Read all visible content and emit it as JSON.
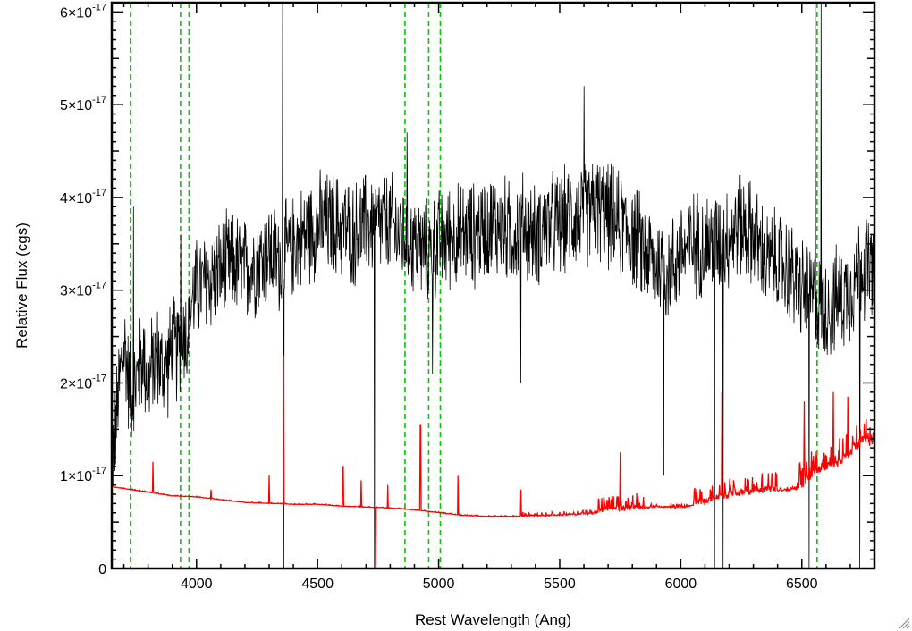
{
  "chart_data": {
    "type": "line",
    "title": "",
    "xlabel": "Rest Wavelength (Ang)",
    "ylabel": "Relative Flux (cgs)",
    "xlim": [
      3650,
      6800
    ],
    "ylim": [
      0,
      6.1e-17
    ],
    "x_ticks": [
      4000,
      4500,
      5000,
      5500,
      6000,
      6500
    ],
    "x_tick_labels": [
      "4000",
      "4500",
      "5000",
      "5500",
      "6000",
      "6500"
    ],
    "y_ticks": [
      0,
      1e-17,
      2e-17,
      3e-17,
      4e-17,
      5e-17,
      6e-17
    ],
    "y_tick_labels": [
      {
        "mantissa": "0",
        "exponent": ""
      },
      {
        "mantissa": "1×10",
        "exponent": "-17"
      },
      {
        "mantissa": "2×10",
        "exponent": "-17"
      },
      {
        "mantissa": "3×10",
        "exponent": "-17"
      },
      {
        "mantissa": "4×10",
        "exponent": "-17"
      },
      {
        "mantissa": "5×10",
        "exponent": "-17"
      },
      {
        "mantissa": "6×10",
        "exponent": "-17"
      }
    ],
    "grid": false,
    "legend": "none",
    "series": [
      {
        "color": "#000000",
        "style": "solid",
        "x": [
          3660,
          3675,
          3690,
          3705,
          3720,
          3740,
          3760,
          3780,
          3800,
          3820,
          3840,
          3860,
          3880,
          3900,
          3920,
          3940,
          3960,
          3980,
          4000,
          4050,
          4100,
          4150,
          4200,
          4250,
          4300,
          4350,
          4400,
          4450,
          4500,
          4550,
          4600,
          4650,
          4700,
          4750,
          4800,
          4850,
          4900,
          4950,
          5000,
          5050,
          5100,
          5150,
          5200,
          5250,
          5300,
          5350,
          5400,
          5450,
          5500,
          5550,
          5600,
          5650,
          5700,
          5750,
          5800,
          5850,
          5900,
          5950,
          6000,
          6050,
          6100,
          6150,
          6200,
          6250,
          6300,
          6350,
          6400,
          6450,
          6500,
          6550,
          6600,
          6650,
          6700,
          6750,
          6790
        ],
        "y": [
          1.3e-17,
          1.8e-17,
          2.2e-17,
          2.4e-17,
          2e-17,
          1.9e-17,
          2.1e-17,
          2.3e-17,
          2e-17,
          2.2e-17,
          2.3e-17,
          2.1e-17,
          2.2e-17,
          2.4e-17,
          2.3e-17,
          2.6e-17,
          2.5e-17,
          2.9e-17,
          3e-17,
          3.1e-17,
          3.2e-17,
          3.3e-17,
          3.2e-17,
          3.3e-17,
          3.4e-17,
          3.3e-17,
          3.5e-17,
          3.6e-17,
          3.7e-17,
          3.7e-17,
          3.7e-17,
          3.6e-17,
          3.7e-17,
          3.7e-17,
          3.7e-17,
          3.6e-17,
          3.5e-17,
          3.4e-17,
          3.5e-17,
          3.6e-17,
          3.6e-17,
          3.6e-17,
          3.7e-17,
          3.7e-17,
          3.6e-17,
          3.7e-17,
          3.6e-17,
          3.7e-17,
          3.7e-17,
          3.8e-17,
          3.8e-17,
          3.9e-17,
          3.8e-17,
          3.7e-17,
          3.6e-17,
          3.4e-17,
          3.3e-17,
          3.2e-17,
          3.4e-17,
          3.5e-17,
          3.5e-17,
          3.5e-17,
          3.6e-17,
          3.7e-17,
          3.6e-17,
          3.3e-17,
          3.3e-17,
          3.2e-17,
          3e-17,
          2.9e-17,
          2.8e-17,
          2.9e-17,
          3e-17,
          3.3e-17,
          3.2e-17
        ],
        "noise_amplitude": 5.5e-18
      },
      {
        "color": "#ff0000",
        "style": "solid",
        "x": [
          3650,
          3700,
          3800,
          3900,
          4000,
          4100,
          4200,
          4300,
          4400,
          4500,
          4600,
          4700,
          4800,
          4900,
          5000,
          5100,
          5200,
          5300,
          5400,
          5500,
          5600,
          5700,
          5800,
          5900,
          6000,
          6100,
          6200,
          6300,
          6400,
          6450,
          6500,
          6550,
          6600,
          6650,
          6700,
          6750,
          6790
        ],
        "y": [
          8.8e-18,
          8.6e-18,
          8.2e-18,
          7.8e-18,
          7.7e-18,
          7.4e-18,
          7.1e-18,
          7e-18,
          6.9e-18,
          6.9e-18,
          6.7e-18,
          6.6e-18,
          6.5e-18,
          6.3e-18,
          6e-18,
          5.7e-18,
          5.6e-18,
          5.6e-18,
          5.6e-18,
          5.7e-18,
          5.8e-18,
          6e-18,
          6.3e-18,
          6.6e-18,
          6.5e-18,
          7e-18,
          7.6e-18,
          8e-18,
          8.3e-18,
          8.4e-18,
          8.6e-18,
          1e-17,
          1.05e-17,
          1.1e-17,
          1.2e-17,
          1.35e-17,
          1.3e-17
        ]
      }
    ],
    "spikes_black": [
      {
        "x": 3740,
        "y": 3.9e-17
      },
      {
        "x": 3935,
        "y": 3.6e-17
      },
      {
        "x": 4355,
        "y": 6.1e-17
      },
      {
        "x": 4360,
        "y": 0
      },
      {
        "x": 4735,
        "y": 0
      },
      {
        "x": 4870,
        "y": 4.7e-17
      },
      {
        "x": 4975,
        "y": 2.1e-17
      },
      {
        "x": 5340,
        "y": 2e-17
      },
      {
        "x": 5600,
        "y": 5.2e-17
      },
      {
        "x": 5930,
        "y": 1e-17
      },
      {
        "x": 6140,
        "y": 0
      },
      {
        "x": 6175,
        "y": 0
      },
      {
        "x": 6530,
        "y": 0
      },
      {
        "x": 6555,
        "y": 6.1e-17
      },
      {
        "x": 6580,
        "y": 6.1e-17
      },
      {
        "x": 6740,
        "y": 0
      }
    ],
    "spikes_red": [
      {
        "x": 3820,
        "y": 1.15e-17
      },
      {
        "x": 4060,
        "y": 8.5e-18
      },
      {
        "x": 4300,
        "y": 1e-17
      },
      {
        "x": 4360,
        "y": 2.3e-17
      },
      {
        "x": 4605,
        "y": 1.1e-17
      },
      {
        "x": 4680,
        "y": 9.5e-18
      },
      {
        "x": 4740,
        "y": 0
      },
      {
        "x": 4790,
        "y": 9e-18
      },
      {
        "x": 4925,
        "y": 1.55e-17
      },
      {
        "x": 5080,
        "y": 1e-17
      },
      {
        "x": 5340,
        "y": 8.5e-18
      },
      {
        "x": 5750,
        "y": 1.25e-17
      },
      {
        "x": 6170,
        "y": 1.9e-17
      },
      {
        "x": 6510,
        "y": 1.8e-17
      },
      {
        "x": 6630,
        "y": 1.9e-17
      },
      {
        "x": 6690,
        "y": 1.85e-17
      }
    ],
    "vertical_markers": [
      3727,
      3934,
      3969,
      4861,
      4959,
      5007,
      6563
    ],
    "vertical_marker_color": "#00cc00",
    "vertical_marker_style": "dashed"
  }
}
